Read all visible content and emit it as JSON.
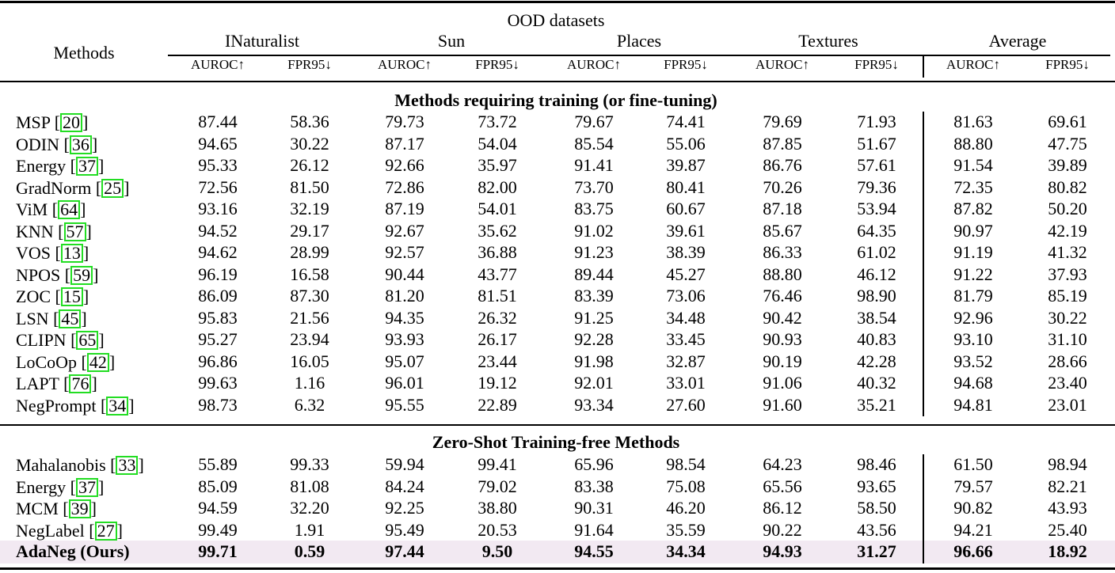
{
  "header": {
    "methods_label": "Methods",
    "group_label": "OOD datasets",
    "datasets": [
      "INaturalist",
      "Sun",
      "Places",
      "Textures",
      "Average"
    ],
    "metrics": [
      "AUROC↑",
      "FPR95↓",
      "AUROC↑",
      "FPR95↓",
      "AUROC↑",
      "FPR95↓",
      "AUROC↑",
      "FPR95↓",
      "AUROC↑",
      "FPR95↓"
    ]
  },
  "sections": [
    {
      "title": "Methods requiring training (or fine-tuning)",
      "rows": [
        {
          "name": "MSP",
          "cite": "20",
          "values": [
            "87.44",
            "58.36",
            "79.73",
            "73.72",
            "79.67",
            "74.41",
            "79.69",
            "71.93",
            "81.63",
            "69.61"
          ]
        },
        {
          "name": "ODIN",
          "cite": "36",
          "values": [
            "94.65",
            "30.22",
            "87.17",
            "54.04",
            "85.54",
            "55.06",
            "87.85",
            "51.67",
            "88.80",
            "47.75"
          ]
        },
        {
          "name": "Energy",
          "cite": "37",
          "values": [
            "95.33",
            "26.12",
            "92.66",
            "35.97",
            "91.41",
            "39.87",
            "86.76",
            "57.61",
            "91.54",
            "39.89"
          ]
        },
        {
          "name": "GradNorm",
          "cite": "25",
          "values": [
            "72.56",
            "81.50",
            "72.86",
            "82.00",
            "73.70",
            "80.41",
            "70.26",
            "79.36",
            "72.35",
            "80.82"
          ]
        },
        {
          "name": "ViM",
          "cite": "64",
          "values": [
            "93.16",
            "32.19",
            "87.19",
            "54.01",
            "83.75",
            "60.67",
            "87.18",
            "53.94",
            "87.82",
            "50.20"
          ]
        },
        {
          "name": "KNN",
          "cite": "57",
          "values": [
            "94.52",
            "29.17",
            "92.67",
            "35.62",
            "91.02",
            "39.61",
            "85.67",
            "64.35",
            "90.97",
            "42.19"
          ]
        },
        {
          "name": "VOS",
          "cite": "13",
          "values": [
            "94.62",
            "28.99",
            "92.57",
            "36.88",
            "91.23",
            "38.39",
            "86.33",
            "61.02",
            "91.19",
            "41.32"
          ]
        },
        {
          "name": "NPOS",
          "cite": "59",
          "values": [
            "96.19",
            "16.58",
            "90.44",
            "43.77",
            "89.44",
            "45.27",
            "88.80",
            "46.12",
            "91.22",
            "37.93"
          ]
        },
        {
          "name": "ZOC",
          "cite": "15",
          "values": [
            "86.09",
            "87.30",
            "81.20",
            "81.51",
            "83.39",
            "73.06",
            "76.46",
            "98.90",
            "81.79",
            "85.19"
          ]
        },
        {
          "name": "LSN",
          "cite": "45",
          "values": [
            "95.83",
            "21.56",
            "94.35",
            "26.32",
            "91.25",
            "34.48",
            "90.42",
            "38.54",
            "92.96",
            "30.22"
          ]
        },
        {
          "name": "CLIPN",
          "cite": "65",
          "values": [
            "95.27",
            "23.94",
            "93.93",
            "26.17",
            "92.28",
            "33.45",
            "90.93",
            "40.83",
            "93.10",
            "31.10"
          ]
        },
        {
          "name": "LoCoOp",
          "cite": "42",
          "values": [
            "96.86",
            "16.05",
            "95.07",
            "23.44",
            "91.98",
            "32.87",
            "90.19",
            "42.28",
            "93.52",
            "28.66"
          ]
        },
        {
          "name": "LAPT",
          "cite": "76",
          "values": [
            "99.63",
            "1.16",
            "96.01",
            "19.12",
            "92.01",
            "33.01",
            "91.06",
            "40.32",
            "94.68",
            "23.40"
          ]
        },
        {
          "name": "NegPrompt",
          "cite": "34",
          "values": [
            "98.73",
            "6.32",
            "95.55",
            "22.89",
            "93.34",
            "27.60",
            "91.60",
            "35.21",
            "94.81",
            "23.01"
          ]
        }
      ]
    },
    {
      "title": "Zero-Shot Training-free Methods",
      "rows": [
        {
          "name": "Mahalanobis",
          "cite": "33",
          "values": [
            "55.89",
            "99.33",
            "59.94",
            "99.41",
            "65.96",
            "98.54",
            "64.23",
            "98.46",
            "61.50",
            "98.94"
          ]
        },
        {
          "name": "Energy",
          "cite": "37",
          "values": [
            "85.09",
            "81.08",
            "84.24",
            "79.02",
            "83.38",
            "75.08",
            "65.56",
            "93.65",
            "79.57",
            "82.21"
          ]
        },
        {
          "name": "MCM",
          "cite": "39",
          "values": [
            "94.59",
            "32.20",
            "92.25",
            "38.80",
            "90.31",
            "46.20",
            "86.12",
            "58.50",
            "90.82",
            "43.93"
          ]
        },
        {
          "name": "NegLabel",
          "cite": "27",
          "values": [
            "99.49",
            "1.91",
            "95.49",
            "20.53",
            "91.64",
            "35.59",
            "90.22",
            "43.56",
            "94.21",
            "25.40"
          ]
        },
        {
          "name": "AdaNeg (Ours)",
          "cite": "",
          "highlight": true,
          "values": [
            "99.71",
            "0.59",
            "97.44",
            "9.50",
            "94.55",
            "34.34",
            "94.93",
            "31.27",
            "96.66",
            "18.92"
          ]
        }
      ]
    }
  ],
  "colors": {
    "highlight_row": "#f2e9f2",
    "cite_box": "#22dd22"
  }
}
